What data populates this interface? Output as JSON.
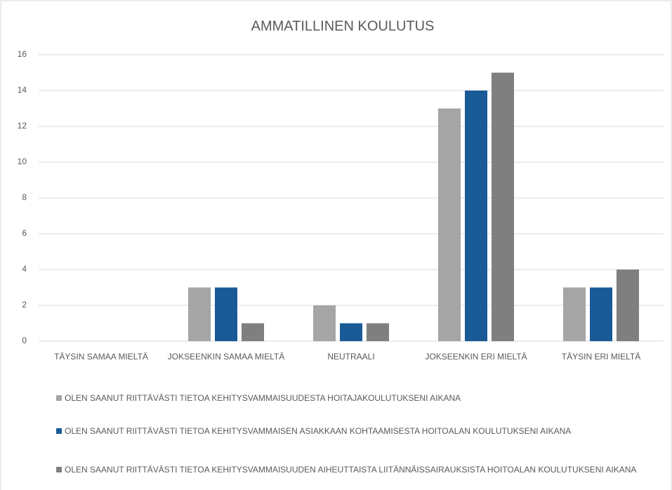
{
  "chart_data": {
    "type": "bar",
    "title": "AMMATILLINEN KOULUTUS",
    "categories": [
      "TÄYSIN SAMAA MIELTÄ",
      "JOKSEENKIN SAMAA MIELTÄ",
      "NEUTRAALI",
      "JOKSEENKIN ERI MIELTÄ",
      "TÄYSIN ERI MIELTÄ"
    ],
    "series": [
      {
        "name": "OLEN SAANUT RIITTÄVÄSTI TIETOA KEHITYSVAMMAISUUDESTA HOITAJAKOULUTUKSENI AIKANA",
        "color": "#a5a5a5",
        "values": [
          0,
          3,
          2,
          13,
          3
        ]
      },
      {
        "name": "OLEN SAANUT RIITTÄVÄSTI TIETOA KEHITYSVAMMAISEN ASIAKKAAN KOHTAAMISESTA HOITOALAN KOULUTUKSENI AIKANA",
        "color": "#1a5a96",
        "values": [
          0,
          3,
          1,
          14,
          3
        ]
      },
      {
        "name": "OLEN SAANUT RIITTÄVÄSTI TIETOA KEHITYSVAMMAISUUDEN AIHEUTTAISTA LIITÄNNÄISSAIRAUKSISTA HOITOALAN KOULUTUKSENI AIKANA",
        "color": "#7f7f7f",
        "values": [
          0,
          1,
          1,
          15,
          4
        ]
      }
    ],
    "ylim": [
      0,
      16
    ],
    "yticks": [
      0,
      2,
      4,
      6,
      8,
      10,
      12,
      14,
      16
    ],
    "grid": true,
    "legend": "bottom"
  }
}
